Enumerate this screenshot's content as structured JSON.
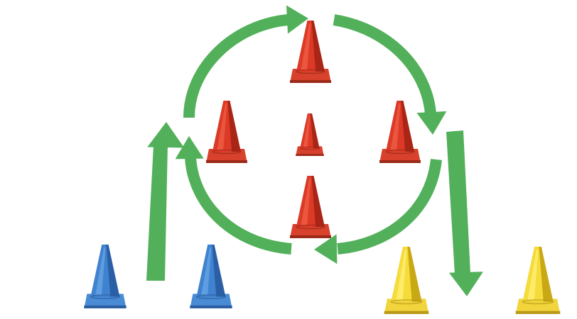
{
  "diagram": {
    "arrow_color": "#52b05a",
    "cones": [
      {
        "id": "top",
        "color": "red"
      },
      {
        "id": "left",
        "color": "red"
      },
      {
        "id": "center",
        "color": "red"
      },
      {
        "id": "right",
        "color": "red"
      },
      {
        "id": "bottom",
        "color": "red"
      },
      {
        "id": "blue-left",
        "color": "blue"
      },
      {
        "id": "blue-right",
        "color": "blue"
      },
      {
        "id": "yellow-left",
        "color": "yellow"
      },
      {
        "id": "yellow-right",
        "color": "yellow"
      }
    ],
    "palettes": {
      "red": {
        "light": "#f06048",
        "mid": "#dc3a26",
        "dark": "#a92516",
        "base": "#d8412c",
        "baseDark": "#9c2a18"
      },
      "blue": {
        "light": "#6aa6e6",
        "mid": "#3f82d0",
        "dark": "#2a5fa6",
        "base": "#4a8bd6",
        "baseDark": "#2b5f9f"
      },
      "yellow": {
        "light": "#fff07a",
        "mid": "#f5dc3a",
        "dark": "#c9a816",
        "base": "#f2d43c",
        "baseDark": "#b99a1a"
      }
    }
  }
}
